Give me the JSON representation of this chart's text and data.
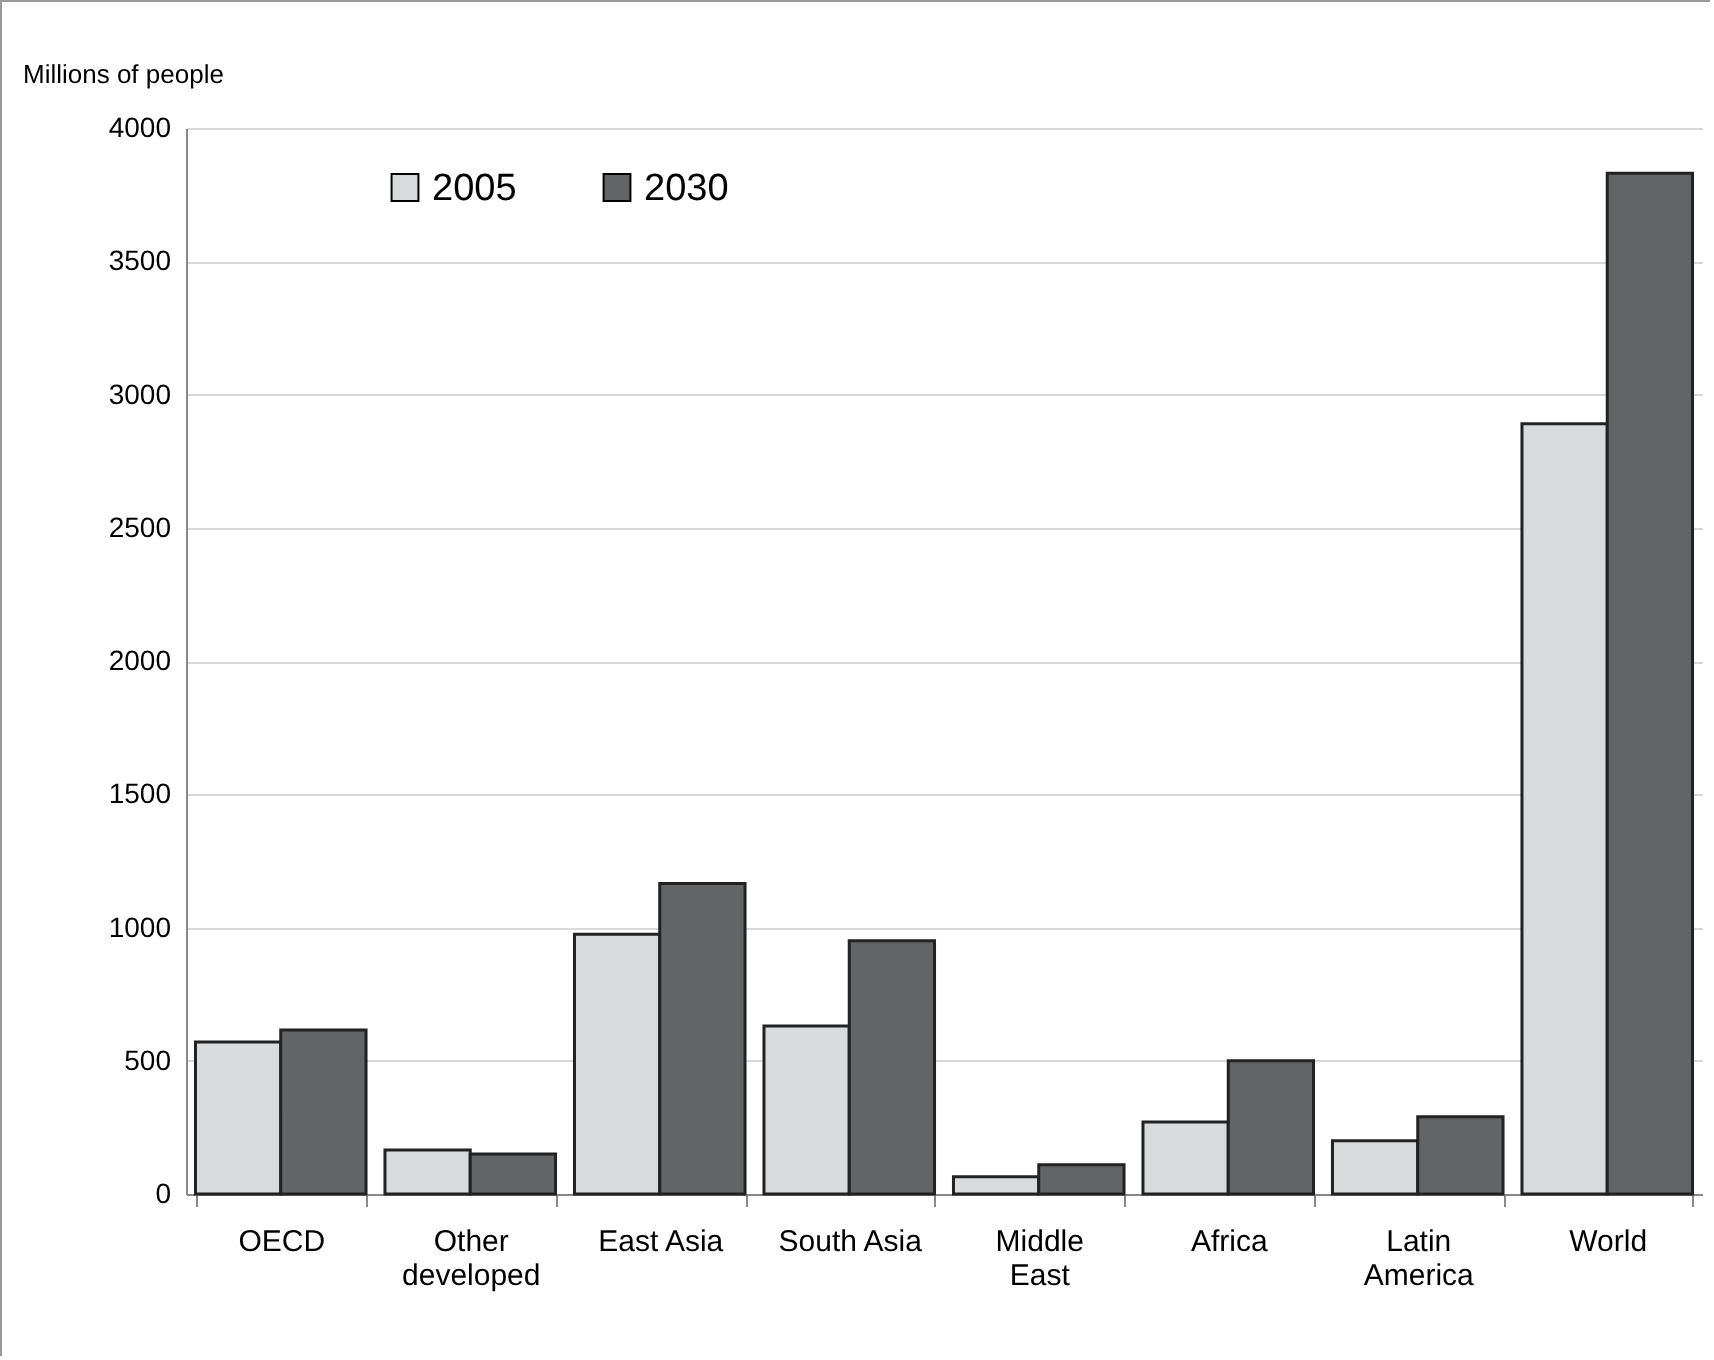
{
  "chart_data": {
    "type": "bar",
    "ylabel": "Millions of people",
    "categories": [
      "OECD",
      "Other developed",
      "East Asia",
      "South Asia",
      "Middle East",
      "Africa",
      "Latin America",
      "World"
    ],
    "series": [
      {
        "name": "2005",
        "color": "#d9dadc",
        "values": [
          570,
          165,
          975,
          630,
          65,
          270,
          200,
          2890
        ]
      },
      {
        "name": "2030",
        "color": "#636466",
        "values": [
          615,
          150,
          1165,
          950,
          110,
          500,
          290,
          3830
        ]
      }
    ],
    "ylim": [
      0,
      4000
    ],
    "yticks": [
      0,
      500,
      1000,
      1500,
      2000,
      2500,
      3000,
      3500,
      4000
    ],
    "grid": "y",
    "legend": "top left"
  }
}
